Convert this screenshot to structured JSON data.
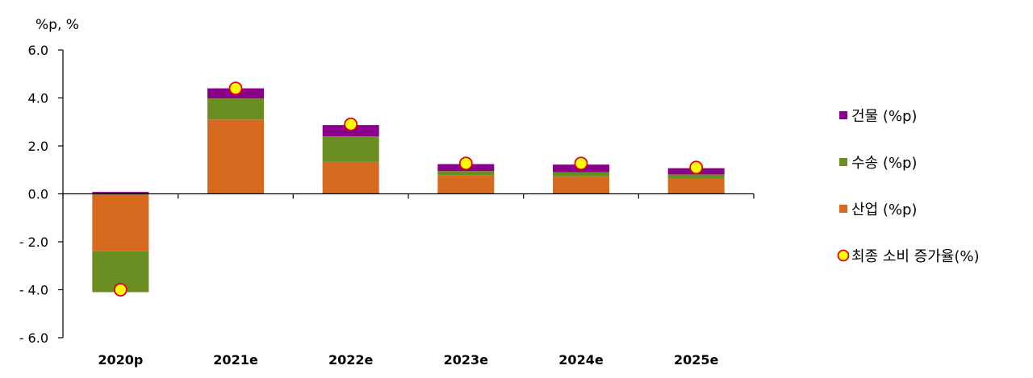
{
  "chart_data": {
    "type": "bar",
    "stacked": true,
    "unit_label": "%p, %",
    "categories": [
      "2020p",
      "2021e",
      "2022e",
      "2023e",
      "2024e",
      "2025e"
    ],
    "ylim": [
      -6.0,
      6.0
    ],
    "yticks": [
      "6.0",
      "4.0",
      "2.0",
      "0.0",
      "- 2.0",
      "- 4.0",
      "- 6.0"
    ],
    "ytick_values": [
      6,
      4,
      2,
      0,
      -2,
      -4,
      -6
    ],
    "grid": false,
    "legend_position": "right",
    "series": [
      {
        "name": "산업 (%p)",
        "color": "#D86A1F",
        "values": [
          -2.4,
          3.1,
          1.33,
          0.78,
          0.73,
          0.64
        ]
      },
      {
        "name": "수송 (%p)",
        "color": "#6B8E23",
        "values": [
          -1.7,
          0.88,
          1.07,
          0.17,
          0.17,
          0.17
        ]
      },
      {
        "name": "건물 (%p)",
        "color": "#8B008B",
        "values": [
          0.08,
          0.42,
          0.47,
          0.29,
          0.32,
          0.26
        ]
      }
    ],
    "line_series": {
      "name": "최종 소비 증가율(%)",
      "marker_fill": "#FFFF00",
      "marker_stroke": "#E2001A",
      "values": [
        -4.0,
        4.4,
        2.9,
        1.27,
        1.27,
        1.1
      ]
    },
    "legend_order": [
      "건물 (%p)",
      "수송 (%p)",
      "산업 (%p)",
      "최종 소비 증가율(%)"
    ]
  }
}
